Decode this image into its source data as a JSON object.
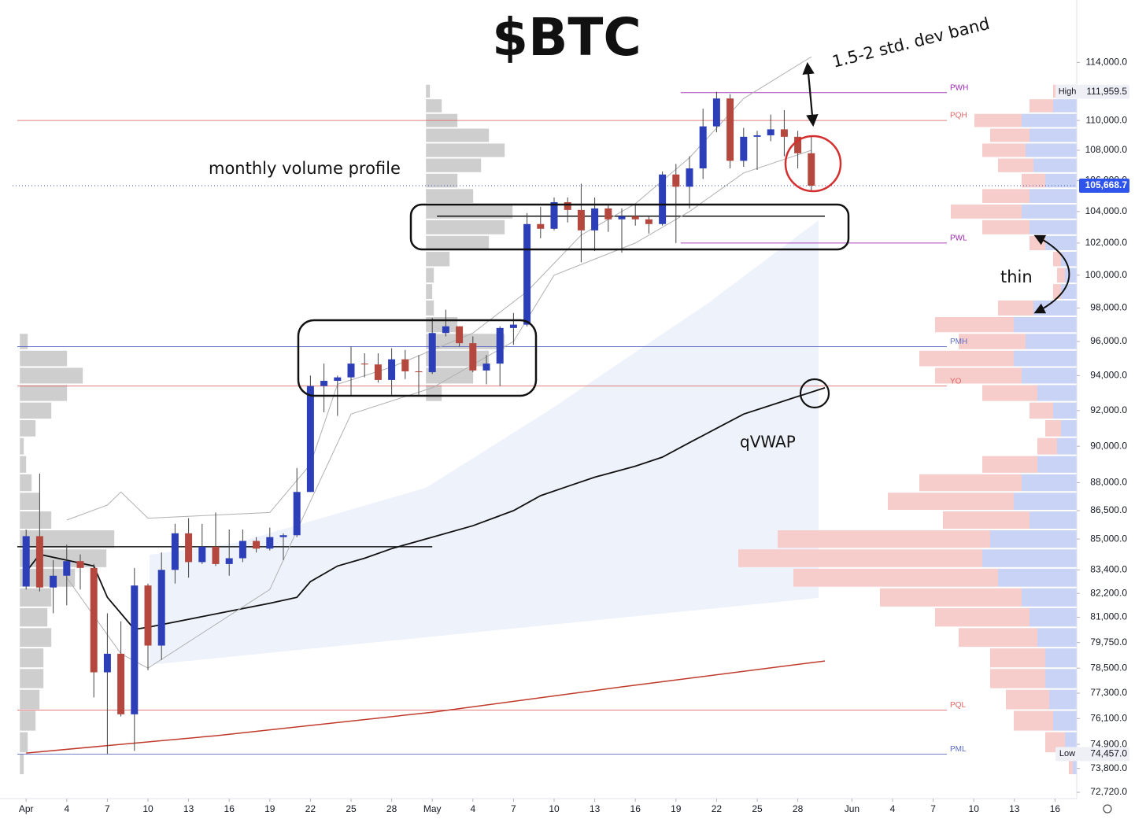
{
  "chart_data": {
    "type": "candlestick",
    "title": "$BTC",
    "log": true,
    "x": [
      "04-01",
      "04-02",
      "04-03",
      "04-04",
      "04-05",
      "04-06",
      "04-07",
      "04-08",
      "04-09",
      "04-10",
      "04-11",
      "04-12",
      "04-13",
      "04-14",
      "04-15",
      "04-16",
      "04-17",
      "04-18",
      "04-19",
      "04-20",
      "04-21",
      "04-22",
      "04-23",
      "04-24",
      "04-25",
      "04-26",
      "04-27",
      "04-28",
      "04-29",
      "04-30",
      "05-01",
      "05-02",
      "05-03",
      "05-04",
      "05-05",
      "05-06",
      "05-07",
      "05-08",
      "05-09",
      "05-10",
      "05-11",
      "05-12",
      "05-13",
      "05-14",
      "05-15",
      "05-16",
      "05-17",
      "05-18",
      "05-19",
      "05-20",
      "05-21",
      "05-22",
      "05-23",
      "05-24",
      "05-25",
      "05-26",
      "05-27",
      "05-28",
      "05-29"
    ],
    "open": [
      82550,
      85150,
      82500,
      83100,
      83850,
      83500,
      78300,
      79200,
      76300,
      82600,
      79600,
      83400,
      85300,
      83800,
      84600,
      83700,
      84000,
      84900,
      84500,
      85100,
      85200,
      87500,
      93400,
      93700,
      93900,
      94700,
      94650,
      93750,
      94950,
      94250,
      94200,
      96500,
      96900,
      95900,
      94300,
      94700,
      96800,
      97000,
      103200,
      102900,
      104600,
      104100,
      102800,
      104200,
      103500,
      103700,
      103500,
      103200,
      106400,
      105600,
      106800,
      109600,
      111500,
      107300,
      108900,
      109000,
      109400,
      108900,
      107800
    ],
    "high": [
      85500,
      88500,
      83900,
      84700,
      84200,
      83700,
      81200,
      80800,
      83500,
      82700,
      84300,
      85800,
      86100,
      85800,
      86400,
      85500,
      85500,
      85100,
      85600,
      85300,
      88800,
      94000,
      94700,
      94000,
      95700,
      95300,
      95300,
      95600,
      95500,
      95200,
      97400,
      97900,
      96900,
      96300,
      95200,
      96900,
      97700,
      103900,
      104300,
      104900,
      104900,
      105800,
      104900,
      104400,
      104200,
      104500,
      103700,
      106600,
      107100,
      107600,
      110800,
      111959.5,
      111800,
      109500,
      109300,
      110400,
      110700,
      109300,
      108900
    ],
    "low": [
      82400,
      82300,
      81200,
      81600,
      82400,
      77100,
      74457,
      76200,
      74600,
      78400,
      78900,
      82700,
      83000,
      83700,
      83600,
      83100,
      83800,
      84300,
      84400,
      83900,
      85100,
      87500,
      91900,
      91700,
      92800,
      93900,
      93600,
      92800,
      93800,
      92900,
      94100,
      96300,
      95700,
      94200,
      93500,
      93400,
      95800,
      96900,
      102300,
      102800,
      103300,
      100800,
      101500,
      102700,
      101400,
      103100,
      102600,
      103100,
      102000,
      104200,
      106100,
      109200,
      106800,
      106900,
      106700,
      108600,
      107600,
      106800,
      105300
    ],
    "close": [
      85150,
      82500,
      83100,
      83850,
      83500,
      78300,
      79200,
      76300,
      82600,
      79600,
      83400,
      85300,
      83800,
      84600,
      83700,
      84000,
      84900,
      84500,
      85100,
      85200,
      87500,
      93400,
      93700,
      93900,
      94700,
      94650,
      93750,
      94950,
      94250,
      94200,
      96500,
      96900,
      95900,
      94300,
      94700,
      96800,
      97000,
      103200,
      102900,
      104600,
      104100,
      102800,
      104200,
      103500,
      103700,
      103500,
      103200,
      106400,
      105600,
      106800,
      109600,
      111500,
      107300,
      108900,
      109000,
      109400,
      108900,
      107800,
      105668.7
    ],
    "up_color": "#2d3fb8",
    "down_color": "#b4483e",
    "xlim": [
      "03-31",
      "06-17"
    ],
    "xticks": [
      {
        "value": "04-01",
        "label": "Apr"
      },
      {
        "value": "04-04",
        "label": "4"
      },
      {
        "value": "04-07",
        "label": "7"
      },
      {
        "value": "04-10",
        "label": "10"
      },
      {
        "value": "04-13",
        "label": "13"
      },
      {
        "value": "04-16",
        "label": "16"
      },
      {
        "value": "04-19",
        "label": "19"
      },
      {
        "value": "04-22",
        "label": "22"
      },
      {
        "value": "04-25",
        "label": "25"
      },
      {
        "value": "04-28",
        "label": "28"
      },
      {
        "value": "05-01",
        "label": "May"
      },
      {
        "value": "05-04",
        "label": "4"
      },
      {
        "value": "05-07",
        "label": "7"
      },
      {
        "value": "05-10",
        "label": "10"
      },
      {
        "value": "05-13",
        "label": "13"
      },
      {
        "value": "05-16",
        "label": "16"
      },
      {
        "value": "05-19",
        "label": "19"
      },
      {
        "value": "05-22",
        "label": "22"
      },
      {
        "value": "05-25",
        "label": "25"
      },
      {
        "value": "05-28",
        "label": "28"
      },
      {
        "value": "06-01",
        "label": "Jun"
      },
      {
        "value": "06-04",
        "label": "4"
      },
      {
        "value": "06-07",
        "label": "7"
      },
      {
        "value": "06-10",
        "label": "10"
      },
      {
        "value": "06-13",
        "label": "13"
      },
      {
        "value": "06-16",
        "label": "16"
      }
    ],
    "ylim": [
      72440,
      117900
    ],
    "yticks": [
      {
        "value": 114000,
        "label": "114,000.0"
      },
      {
        "value": 110000,
        "label": "110,000.0"
      },
      {
        "value": 108000,
        "label": "108,000.0"
      },
      {
        "value": 106000,
        "label": "106,000.0"
      },
      {
        "value": 104000,
        "label": "104,000.0"
      },
      {
        "value": 102000,
        "label": "102,000.0"
      },
      {
        "value": 100000,
        "label": "100,000.0"
      },
      {
        "value": 98000,
        "label": "98,000.0"
      },
      {
        "value": 96000,
        "label": "96,000.0"
      },
      {
        "value": 94000,
        "label": "94,000.0"
      },
      {
        "value": 92000,
        "label": "92,000.0"
      },
      {
        "value": 90000,
        "label": "90,000.0"
      },
      {
        "value": 88000,
        "label": "88,000.0"
      },
      {
        "value": 86500,
        "label": "86,500.0"
      },
      {
        "value": 85000,
        "label": "85,000.0"
      },
      {
        "value": 83400,
        "label": "83,400.0"
      },
      {
        "value": 82200,
        "label": "82,200.0"
      },
      {
        "value": 81000,
        "label": "81,000.0"
      },
      {
        "value": 79750,
        "label": "79,750.0"
      },
      {
        "value": 78500,
        "label": "78,500.0"
      },
      {
        "value": 77300,
        "label": "77,300.0"
      },
      {
        "value": 76100,
        "label": "76,100.0"
      },
      {
        "value": 74900,
        "label": "74,900.0"
      },
      {
        "value": 73800,
        "label": "73,800.0"
      },
      {
        "value": 72720,
        "label": "72,720.0"
      }
    ],
    "lines": [
      {
        "name": "qVWAP",
        "color": "#111111",
        "width": 1.8,
        "x": [
          "04-01",
          "04-02",
          "04-04",
          "04-06",
          "04-07",
          "04-08",
          "04-09",
          "04-10",
          "04-13",
          "04-16",
          "04-19",
          "04-21",
          "04-22",
          "04-24",
          "04-26",
          "04-28",
          "05-01",
          "05-04",
          "05-07",
          "05-09",
          "05-11",
          "05-13",
          "05-16",
          "05-18",
          "05-20",
          "05-22",
          "05-24",
          "05-26",
          "05-28",
          "05-30"
        ],
        "values": [
          83300,
          84200,
          83900,
          83600,
          82000,
          81200,
          80400,
          80500,
          80900,
          81300,
          81700,
          82000,
          82800,
          83600,
          84000,
          84500,
          85100,
          85700,
          86500,
          87300,
          87800,
          88300,
          88900,
          89400,
          90200,
          91000,
          91800,
          92300,
          92800,
          93300
        ]
      },
      {
        "color": "#c0392b",
        "width": 1.5,
        "x": [
          "04-01",
          "04-15",
          "05-01",
          "05-15",
          "05-30"
        ],
        "values": [
          74500,
          75300,
          76400,
          77600,
          78850
        ]
      },
      {
        "color": "#b0b0b0",
        "width": 1,
        "x": [
          "04-04",
          "04-07",
          "04-08",
          "04-10",
          "04-19",
          "04-22",
          "04-24",
          "04-28",
          "05-04",
          "05-08",
          "05-12",
          "05-16",
          "05-20",
          "05-24",
          "05-29"
        ],
        "values": [
          86000,
          86800,
          87500,
          86100,
          86400,
          89000,
          93500,
          94500,
          96500,
          99000,
          102500,
          104500,
          107500,
          111500,
          114400
        ]
      },
      {
        "color": "#b0b0b0",
        "width": 1,
        "x": [
          "04-04",
          "04-08",
          "04-10",
          "04-19",
          "04-22",
          "04-25",
          "05-01",
          "05-07",
          "05-10",
          "05-16",
          "05-20",
          "05-24",
          "05-29"
        ],
        "values": [
          83000,
          79200,
          78500,
          82400,
          87000,
          91800,
          93300,
          96000,
          100000,
          102000,
          104000,
          106500,
          108000
        ]
      }
    ],
    "levels": [
      {
        "name": "PWH",
        "value": 111900,
        "start": "05-19",
        "color": "#9c27b0"
      },
      {
        "name": "PQH",
        "value": 110000,
        "start": "03-31",
        "color": "#e06666"
      },
      {
        "name": "PWL",
        "value": 102000,
        "start": "05-19",
        "color": "#9c27b0"
      },
      {
        "name": "PMH",
        "value": 95700,
        "start": "03-31",
        "color": "#5c6bc0"
      },
      {
        "name": "YO",
        "value": 93400,
        "start": "03-31",
        "color": "#e06666"
      },
      {
        "name": "PQL",
        "value": 76500,
        "start": "03-31",
        "color": "#e06666"
      },
      {
        "name": "PML",
        "value": 74450,
        "start": "03-31",
        "color": "#5c6bc0"
      }
    ],
    "poc_lines": [
      {
        "start": "03-31",
        "end": "05-01",
        "value": 84600
      },
      {
        "start": "05-01",
        "end": "05-30",
        "value": 103700
      }
    ],
    "profiles": [
      {
        "start": "04-01",
        "color": "#bdbdbd",
        "levels": [
          74000,
          75000,
          76000,
          77000,
          78000,
          79000,
          80000,
          81000,
          82000,
          83000,
          84000,
          85000,
          86000,
          87000,
          88000,
          89000,
          90000,
          91000,
          92000,
          93000,
          94000,
          95000,
          96000
        ],
        "volumes": [
          5,
          10,
          20,
          25,
          30,
          30,
          40,
          35,
          40,
          70,
          110,
          120,
          40,
          25,
          15,
          8,
          5,
          20,
          40,
          60,
          80,
          60,
          10
        ]
      },
      {
        "start": "05-01",
        "color": "#bdbdbd",
        "levels": [
          93000,
          94000,
          95000,
          96000,
          97000,
          98000,
          99000,
          100000,
          101000,
          102000,
          103000,
          104000,
          105000,
          106000,
          107000,
          108000,
          109000,
          110000,
          111000,
          112000
        ],
        "volumes": [
          20,
          60,
          80,
          100,
          40,
          10,
          8,
          10,
          30,
          80,
          100,
          110,
          60,
          40,
          70,
          100,
          80,
          40,
          20,
          5
        ]
      }
    ],
    "session_profile": {
      "buy_color": "#c9d3f5",
      "sell_color": "#f6cdcb",
      "levels": [
        74000,
        75000,
        76000,
        77000,
        78000,
        79000,
        80000,
        81000,
        82000,
        83000,
        84000,
        85000,
        86000,
        87000,
        88000,
        89000,
        90000,
        91000,
        92000,
        93000,
        94000,
        95000,
        96000,
        97000,
        98000,
        99000,
        100000,
        101000,
        102000,
        103000,
        104000,
        105000,
        106000,
        107000,
        108000,
        109000,
        110000,
        111000,
        112000
      ],
      "buy": [
        5,
        15,
        30,
        35,
        40,
        40,
        50,
        60,
        70,
        100,
        120,
        110,
        60,
        80,
        70,
        50,
        25,
        20,
        30,
        50,
        70,
        80,
        65,
        80,
        55,
        20,
        15,
        20,
        40,
        60,
        70,
        60,
        40,
        55,
        65,
        60,
        70,
        30,
        15
      ],
      "sell": [
        5,
        25,
        50,
        55,
        70,
        70,
        100,
        120,
        180,
        260,
        310,
        270,
        110,
        160,
        130,
        70,
        25,
        20,
        30,
        70,
        110,
        120,
        85,
        100,
        45,
        10,
        10,
        10,
        20,
        60,
        90,
        60,
        30,
        45,
        55,
        50,
        60,
        30,
        15
      ]
    },
    "price_labels": [
      {
        "name": "High",
        "value": 111959.5,
        "label": "111,959.5"
      },
      {
        "name": "Low",
        "value": 74457,
        "label": "74,457.0"
      },
      {
        "value": 105668.7,
        "label": "105,668.7"
      }
    ],
    "annotations": [
      "1.5-2 std. dev band",
      "monthly volume profile",
      "thin"
    ]
  }
}
